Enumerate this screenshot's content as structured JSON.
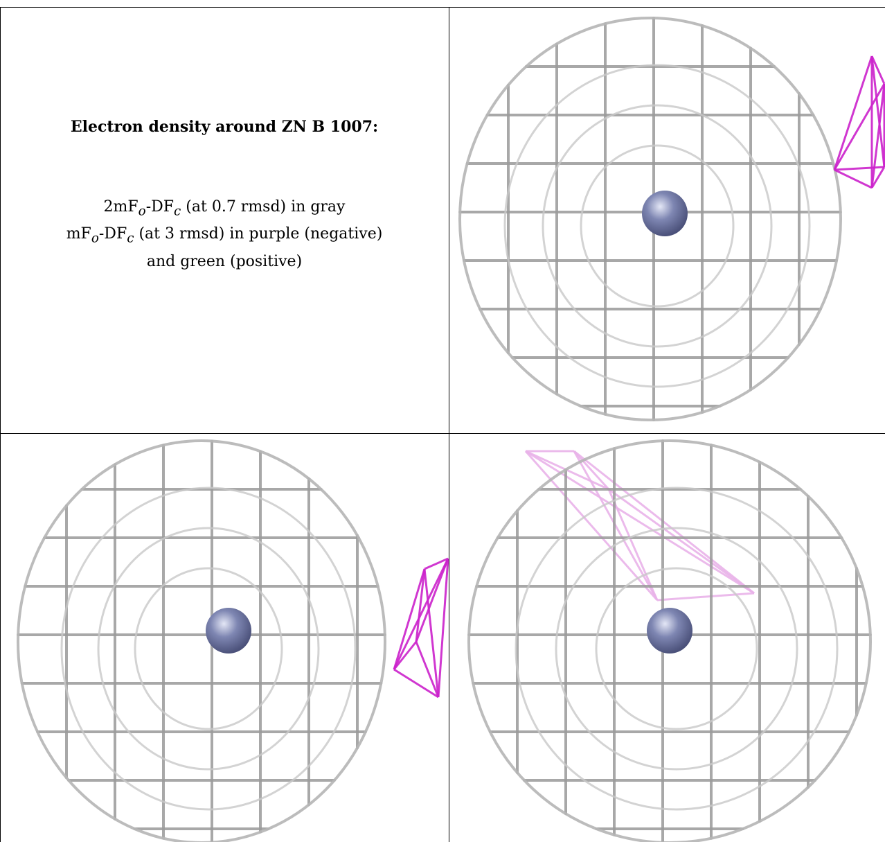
{
  "caption": {
    "title": "Electron density around ZN B 1007:",
    "line1_pre": "2mF",
    "line1_sub1": "o",
    "line1_mid": "-DF",
    "line1_sub2": "c",
    "line1_post": " (at 0.7 rmsd) in gray",
    "line2_pre": "mF",
    "line2_sub1": "o",
    "line2_mid": "-DF",
    "line2_sub2": "c",
    "line2_post": " (at 3 rmsd) in purple (negative)",
    "line3": "and green (positive)"
  },
  "panels": [
    {
      "name": "top-right-view",
      "mesh_color": "#9a9a9a",
      "atom_color": "#7e86b2",
      "neg_color": "#cc22cc"
    },
    {
      "name": "bottom-left-view",
      "mesh_color": "#9a9a9a",
      "atom_color": "#7e86b2",
      "neg_color": "#cc22cc"
    },
    {
      "name": "bottom-right-view",
      "mesh_color": "#9a9a9a",
      "atom_color": "#7e86b2",
      "neg_color": "#e9b3e9"
    }
  ]
}
